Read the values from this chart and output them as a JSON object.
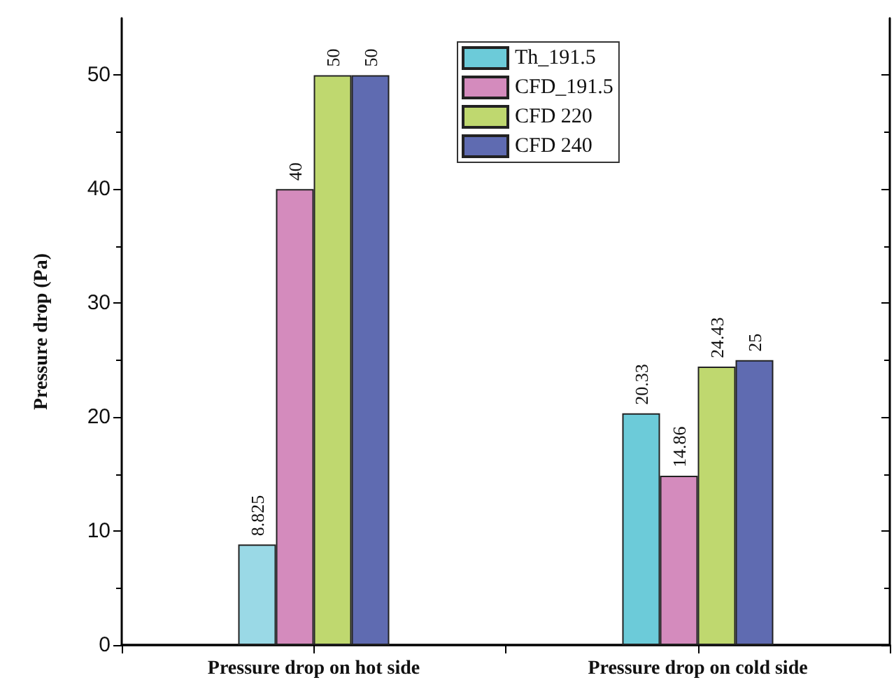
{
  "chart_data": {
    "type": "bar",
    "ylabel": "Pressure drop (Pa)",
    "categories": [
      "Pressure drop on hot side",
      "Pressure drop on cold side"
    ],
    "series": [
      {
        "name": "Th_191.5",
        "color": "#6ccbd9",
        "colors": [
          "#9ad9e6",
          "#6ccbd9"
        ],
        "values": [
          8.825,
          20.33
        ]
      },
      {
        "name": "CFD_191.5",
        "color": "#d48bbd",
        "values": [
          40,
          14.86
        ]
      },
      {
        "name": "CFD 220",
        "color": "#bfd86f",
        "values": [
          50,
          24.43
        ]
      },
      {
        "name": "CFD 240",
        "color": "#5f6bb1",
        "values": [
          50,
          25
        ]
      }
    ],
    "ylim": [
      0,
      55
    ],
    "yticks": [
      0,
      10,
      20,
      30,
      40,
      50
    ],
    "data_labels": true,
    "legend": "top",
    "grid": false
  }
}
